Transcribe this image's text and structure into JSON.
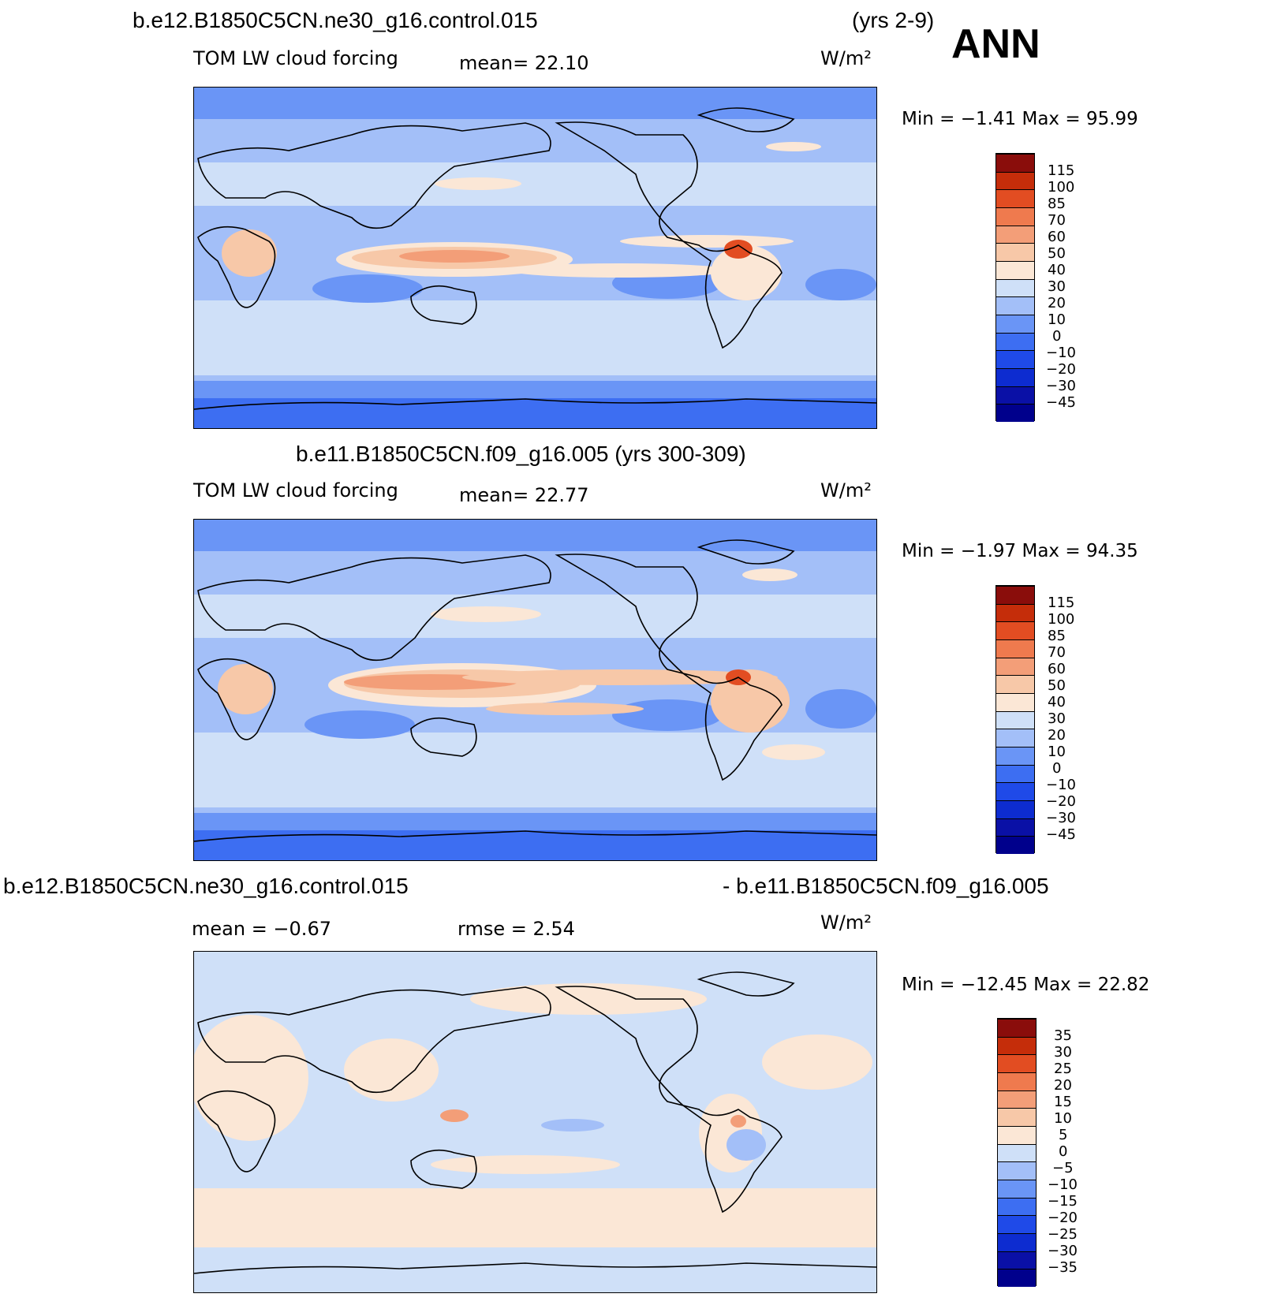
{
  "season": "ANN",
  "colors": {
    "abs_palette": [
      "#00008c",
      "#0a10a6",
      "#0d2cd0",
      "#1f4ae8",
      "#3d6ef2",
      "#6a95f6",
      "#a3bff8",
      "#cfe0f8",
      "#fbe7d6",
      "#f7c8a8",
      "#f39e78",
      "#ef7a4e",
      "#e24d22",
      "#c52d0a",
      "#8a0d0b"
    ],
    "diff_palette": [
      "#00008c",
      "#0a10a6",
      "#0d2cd0",
      "#1f4ae8",
      "#3d6ef2",
      "#6a95f6",
      "#a3bff8",
      "#cfe0f8",
      "#fbe7d6",
      "#f7c8a8",
      "#f39e78",
      "#ef7a4e",
      "#e24d22",
      "#c52d0a",
      "#8a0d0b"
    ],
    "coast": "#000000"
  },
  "panels": [
    {
      "header_left": "b.e12.B1850C5CN.ne30_g16.control.015",
      "header_right": "(yrs 2-9)",
      "field_label": "TOM LW cloud forcing",
      "mean_label": "mean=  22.10",
      "units": "W/m²",
      "minmax": "Min =  −1.41 Max =  95.99",
      "levels": [
        "115",
        "100",
        "85",
        "70",
        "60",
        "50",
        "40",
        "30",
        "20",
        "10",
        "0",
        "−10",
        "−20",
        "−30",
        "−45"
      ]
    },
    {
      "header_center": "b.e11.B1850C5CN.f09_g16.005 (yrs 300-309)",
      "field_label": "TOM LW cloud forcing",
      "mean_label": "mean=  22.77",
      "units": "W/m²",
      "minmax": "Min =  −1.97 Max =  94.35",
      "levels": [
        "115",
        "100",
        "85",
        "70",
        "60",
        "50",
        "40",
        "30",
        "20",
        "10",
        "0",
        "−10",
        "−20",
        "−30",
        "−45"
      ]
    },
    {
      "header_left": "b.e12.B1850C5CN.ne30_g16.control.015",
      "header_right": "- b.e11.B1850C5CN.f09_g16.005",
      "mean_label": "mean =  −0.67",
      "rmse_label": "rmse =   2.54",
      "units": "W/m²",
      "minmax": "Min = −12.45 Max =  22.82",
      "levels": [
        "35",
        "30",
        "25",
        "20",
        "15",
        "10",
        "5",
        "0",
        "−5",
        "−10",
        "−15",
        "−20",
        "−25",
        "−30",
        "−35"
      ]
    }
  ]
}
